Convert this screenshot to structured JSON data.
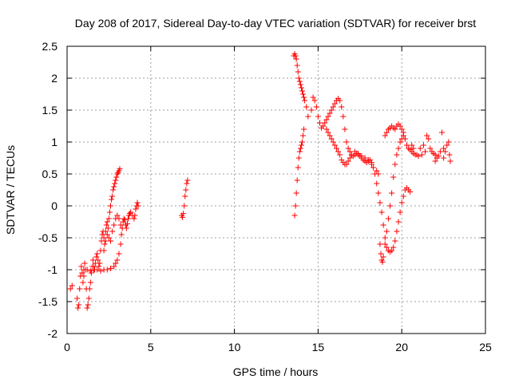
{
  "chart_data": {
    "type": "scatter",
    "title": "Day 208 of 2017, Sidereal Day-to-day VTEC variation (SDTVAR) for receiver brst",
    "xlabel": "GPS time / hours",
    "ylabel": "SDTVAR / TECUs",
    "xlim": [
      0,
      25
    ],
    "ylim": [
      -2,
      2.5
    ],
    "xticks": [
      "0",
      "5",
      "10",
      "15",
      "20",
      "25"
    ],
    "yticks": [
      "-2",
      "-1.5",
      "-1",
      "-0.5",
      "0",
      "0.5",
      "1",
      "1.5",
      "2",
      "2.5"
    ],
    "grid": true,
    "marker": "plus",
    "series": [
      {
        "color": "#ff0000",
        "points": [
          [
            0.2,
            -1.3
          ],
          [
            0.3,
            -1.25
          ],
          [
            0.6,
            -1.45
          ],
          [
            0.65,
            -1.6
          ],
          [
            0.7,
            -1.55
          ],
          [
            0.75,
            -1.3
          ],
          [
            0.8,
            -1.1
          ],
          [
            0.85,
            -0.95
          ],
          [
            0.9,
            -1.05
          ],
          [
            0.95,
            -1.2
          ],
          [
            1.0,
            -1.1
          ],
          [
            1.05,
            -0.9
          ],
          [
            1.1,
            -1.0
          ],
          [
            1.15,
            -1.3
          ],
          [
            1.2,
            -1.6
          ],
          [
            1.25,
            -1.55
          ],
          [
            1.3,
            -1.45
          ],
          [
            1.35,
            -1.3
          ],
          [
            1.4,
            -1.2
          ],
          [
            1.45,
            -1.05
          ],
          [
            1.5,
            -0.95
          ],
          [
            1.55,
            -0.85
          ],
          [
            1.6,
            -0.95
          ],
          [
            1.65,
            -1.0
          ],
          [
            1.7,
            -0.9
          ],
          [
            1.75,
            -0.8
          ],
          [
            1.8,
            -0.75
          ],
          [
            1.85,
            -0.85
          ],
          [
            1.9,
            -0.95
          ],
          [
            1.95,
            -0.9
          ],
          [
            2.0,
            -0.7
          ],
          [
            2.05,
            -0.55
          ],
          [
            2.1,
            -0.45
          ],
          [
            2.15,
            -0.4
          ],
          [
            2.2,
            -0.5
          ],
          [
            2.25,
            -0.6
          ],
          [
            2.3,
            -0.4
          ],
          [
            2.35,
            -0.3
          ],
          [
            2.4,
            -0.25
          ],
          [
            2.45,
            -0.35
          ],
          [
            2.5,
            -0.2
          ],
          [
            2.55,
            -0.1
          ],
          [
            2.6,
            0.0
          ],
          [
            2.65,
            0.1
          ],
          [
            2.7,
            0.15
          ],
          [
            2.75,
            0.25
          ],
          [
            2.8,
            0.3
          ],
          [
            2.85,
            0.35
          ],
          [
            2.9,
            0.4
          ],
          [
            2.95,
            0.45
          ],
          [
            3.0,
            0.5
          ],
          [
            3.05,
            0.52
          ],
          [
            3.1,
            0.55
          ],
          [
            3.15,
            0.58
          ],
          [
            1.0,
            -1.0
          ],
          [
            1.2,
            -1.0
          ],
          [
            1.4,
            -1.02
          ],
          [
            1.6,
            -1.0
          ],
          [
            1.8,
            -1.0
          ],
          [
            2.0,
            -1.02
          ],
          [
            2.2,
            -1.0
          ],
          [
            2.4,
            -1.0
          ],
          [
            2.6,
            -0.98
          ],
          [
            2.8,
            -0.95
          ],
          [
            2.9,
            -0.9
          ],
          [
            3.0,
            -0.85
          ],
          [
            3.1,
            -0.75
          ],
          [
            3.2,
            -0.6
          ],
          [
            3.25,
            -0.45
          ],
          [
            3.3,
            -0.35
          ],
          [
            3.35,
            -0.25
          ],
          [
            3.4,
            -0.2
          ],
          [
            3.45,
            -0.22
          ],
          [
            3.5,
            -0.3
          ],
          [
            3.55,
            -0.35
          ],
          [
            3.6,
            -0.28
          ],
          [
            3.65,
            -0.2
          ],
          [
            3.7,
            -0.15
          ],
          [
            3.75,
            -0.12
          ],
          [
            3.8,
            -0.1
          ],
          [
            3.9,
            -0.15
          ],
          [
            4.0,
            -0.2
          ],
          [
            4.05,
            -0.15
          ],
          [
            4.1,
            -0.05
          ],
          [
            4.15,
            0.0
          ],
          [
            4.2,
            0.05
          ],
          [
            4.25,
            0.0
          ],
          [
            2.2,
            -0.7
          ],
          [
            2.3,
            -0.55
          ],
          [
            2.4,
            -0.45
          ],
          [
            2.5,
            -0.5
          ],
          [
            2.6,
            -0.55
          ],
          [
            2.7,
            -0.4
          ],
          [
            2.8,
            -0.3
          ],
          [
            2.9,
            -0.2
          ],
          [
            3.0,
            -0.15
          ],
          [
            3.1,
            -0.2
          ],
          [
            3.2,
            -0.3
          ],
          [
            6.85,
            -0.15
          ],
          [
            6.9,
            -0.18
          ],
          [
            6.95,
            -0.12
          ],
          [
            7.0,
            0.0
          ],
          [
            7.05,
            0.15
          ],
          [
            7.1,
            0.25
          ],
          [
            7.15,
            0.35
          ],
          [
            7.2,
            0.4
          ],
          [
            13.6,
            -0.15
          ],
          [
            13.65,
            0.0
          ],
          [
            13.7,
            0.2
          ],
          [
            13.75,
            0.4
          ],
          [
            13.8,
            0.6
          ],
          [
            13.85,
            0.75
          ],
          [
            13.9,
            0.85
          ],
          [
            13.95,
            0.9
          ],
          [
            14.0,
            0.95
          ],
          [
            14.05,
            1.0
          ],
          [
            14.1,
            1.1
          ],
          [
            14.15,
            1.2
          ],
          [
            13.55,
            2.35
          ],
          [
            13.6,
            2.38
          ],
          [
            13.65,
            2.35
          ],
          [
            13.7,
            2.3
          ],
          [
            13.75,
            2.2
          ],
          [
            13.8,
            2.1
          ],
          [
            13.85,
            2.0
          ],
          [
            13.9,
            1.95
          ],
          [
            13.95,
            1.9
          ],
          [
            14.0,
            1.85
          ],
          [
            14.05,
            1.8
          ],
          [
            14.1,
            1.75
          ],
          [
            14.15,
            1.7
          ],
          [
            14.2,
            1.65
          ],
          [
            14.3,
            1.55
          ],
          [
            14.4,
            1.4
          ],
          [
            14.6,
            1.5
          ],
          [
            14.7,
            1.7
          ],
          [
            14.8,
            1.65
          ],
          [
            14.9,
            1.55
          ],
          [
            15.0,
            1.4
          ],
          [
            15.1,
            1.3
          ],
          [
            15.2,
            1.22
          ],
          [
            15.3,
            1.25
          ],
          [
            15.4,
            1.3
          ],
          [
            15.5,
            1.35
          ],
          [
            15.6,
            1.4
          ],
          [
            15.7,
            1.45
          ],
          [
            15.8,
            1.5
          ],
          [
            15.9,
            1.55
          ],
          [
            16.0,
            1.6
          ],
          [
            16.1,
            1.65
          ],
          [
            16.2,
            1.68
          ],
          [
            16.3,
            1.65
          ],
          [
            16.4,
            1.55
          ],
          [
            16.5,
            1.4
          ],
          [
            16.6,
            1.2
          ],
          [
            16.7,
            1.0
          ],
          [
            16.8,
            0.9
          ],
          [
            16.9,
            0.85
          ],
          [
            17.0,
            0.8
          ],
          [
            17.1,
            0.78
          ],
          [
            17.2,
            0.8
          ],
          [
            17.3,
            0.82
          ],
          [
            17.4,
            0.8
          ],
          [
            17.5,
            0.78
          ],
          [
            17.6,
            0.75
          ],
          [
            17.7,
            0.72
          ],
          [
            17.8,
            0.7
          ],
          [
            17.9,
            0.68
          ],
          [
            18.0,
            0.7
          ],
          [
            18.1,
            0.72
          ],
          [
            18.2,
            0.68
          ],
          [
            18.3,
            0.6
          ],
          [
            18.4,
            0.5
          ],
          [
            18.5,
            0.35
          ],
          [
            18.6,
            0.2
          ],
          [
            18.7,
            0.05
          ],
          [
            18.8,
            -0.1
          ],
          [
            18.9,
            -0.3
          ],
          [
            19.0,
            -0.5
          ],
          [
            19.1,
            -0.65
          ],
          [
            19.2,
            -0.7
          ],
          [
            19.3,
            -0.72
          ],
          [
            19.4,
            -0.7
          ],
          [
            19.5,
            -0.65
          ],
          [
            19.6,
            -0.55
          ],
          [
            19.7,
            -0.4
          ],
          [
            19.8,
            -0.25
          ],
          [
            19.9,
            -0.1
          ],
          [
            20.0,
            0.05
          ],
          [
            20.1,
            0.15
          ],
          [
            20.2,
            0.25
          ],
          [
            20.3,
            0.28
          ],
          [
            20.4,
            0.25
          ],
          [
            20.5,
            0.22
          ],
          [
            15.5,
            1.2
          ],
          [
            15.6,
            1.15
          ],
          [
            15.7,
            1.1
          ],
          [
            15.8,
            1.05
          ],
          [
            15.9,
            1.0
          ],
          [
            16.0,
            0.95
          ],
          [
            16.1,
            0.9
          ],
          [
            16.2,
            0.85
          ],
          [
            16.3,
            0.8
          ],
          [
            16.4,
            0.72
          ],
          [
            16.5,
            0.68
          ],
          [
            16.6,
            0.65
          ],
          [
            16.7,
            0.65
          ],
          [
            16.8,
            0.7
          ],
          [
            16.9,
            0.75
          ],
          [
            17.0,
            0.8
          ],
          [
            17.2,
            0.85
          ],
          [
            17.4,
            0.82
          ],
          [
            17.6,
            0.78
          ],
          [
            17.8,
            0.75
          ],
          [
            18.0,
            0.72
          ],
          [
            18.2,
            0.65
          ],
          [
            18.5,
            0.55
          ],
          [
            18.6,
            0.5
          ],
          [
            18.7,
            -0.6
          ],
          [
            18.75,
            -0.75
          ],
          [
            18.8,
            -0.85
          ],
          [
            18.85,
            -0.88
          ],
          [
            18.9,
            -0.8
          ],
          [
            19.0,
            -0.6
          ],
          [
            19.1,
            -0.4
          ],
          [
            19.2,
            -0.2
          ],
          [
            19.3,
            0.0
          ],
          [
            19.4,
            0.2
          ],
          [
            19.5,
            0.45
          ],
          [
            19.6,
            0.65
          ],
          [
            19.7,
            0.8
          ],
          [
            19.8,
            0.9
          ],
          [
            19.9,
            1.0
          ],
          [
            20.0,
            1.05
          ],
          [
            20.1,
            1.1
          ],
          [
            20.2,
            1.05
          ],
          [
            20.3,
            0.95
          ],
          [
            20.4,
            0.9
          ],
          [
            20.5,
            0.88
          ],
          [
            20.6,
            0.85
          ],
          [
            20.7,
            0.82
          ],
          [
            20.8,
            0.8
          ],
          [
            20.9,
            0.8
          ],
          [
            21.0,
            0.78
          ],
          [
            19.0,
            1.1
          ],
          [
            19.1,
            1.15
          ],
          [
            19.2,
            1.2
          ],
          [
            19.3,
            1.22
          ],
          [
            19.4,
            1.25
          ],
          [
            19.5,
            1.22
          ],
          [
            19.6,
            1.2
          ],
          [
            19.7,
            1.25
          ],
          [
            19.8,
            1.28
          ],
          [
            19.9,
            1.25
          ],
          [
            20.0,
            1.2
          ],
          [
            20.1,
            1.15
          ],
          [
            20.2,
            1.05
          ],
          [
            21.2,
            0.8
          ],
          [
            21.4,
            0.85
          ],
          [
            21.5,
            1.1
          ],
          [
            21.6,
            1.05
          ],
          [
            21.7,
            0.9
          ],
          [
            21.8,
            0.85
          ],
          [
            21.9,
            0.82
          ],
          [
            22.0,
            0.8
          ],
          [
            22.1,
            0.75
          ],
          [
            22.2,
            0.78
          ],
          [
            22.3,
            0.85
          ],
          [
            22.4,
            1.15
          ],
          [
            22.5,
            0.9
          ],
          [
            22.6,
            0.85
          ],
          [
            22.7,
            0.95
          ],
          [
            22.8,
            1.0
          ],
          [
            22.85,
            0.8
          ],
          [
            22.9,
            0.7
          ],
          [
            21.1,
            0.9
          ],
          [
            21.3,
            0.95
          ],
          [
            22.0,
            0.7
          ],
          [
            22.5,
            0.75
          ],
          [
            20.6,
            0.95
          ],
          [
            20.7,
            0.9
          ]
        ]
      }
    ]
  }
}
